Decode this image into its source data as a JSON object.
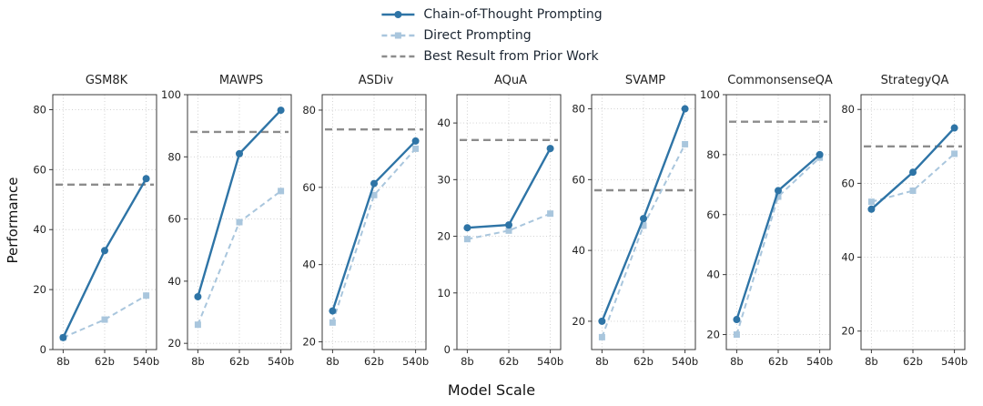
{
  "figure": {
    "ylabel": "Performance",
    "xlabel": "Model Scale"
  },
  "legend": {
    "items": [
      {
        "id": "cot",
        "label": "Chain-of-Thought Prompting",
        "style": "solid",
        "marker": "circle",
        "color": "#2e74a6"
      },
      {
        "id": "direct",
        "label": "Direct Prompting",
        "style": "dashed",
        "marker": "square",
        "color": "#a9c6dd"
      },
      {
        "id": "prior",
        "label": "Best Result from Prior Work",
        "style": "dashed",
        "marker": "none",
        "color": "#8c8c8c"
      }
    ]
  },
  "chart_data": {
    "type": "line",
    "x_categories": [
      "8b",
      "62b",
      "540b"
    ],
    "xlabel": "Model Scale",
    "ylabel": "Performance",
    "grid": true,
    "legend_position": "top-center",
    "series_names": [
      "Chain-of-Thought Prompting",
      "Direct Prompting"
    ],
    "reference_line_name": "Best Result from Prior Work",
    "panels": [
      {
        "title": "GSM8K",
        "ylim": [
          0,
          85
        ],
        "yticks": [
          0,
          20,
          40,
          60,
          80
        ],
        "cot": [
          4,
          33,
          57
        ],
        "direct": [
          4,
          10,
          18
        ],
        "prior_best": 55
      },
      {
        "title": "MAWPS",
        "ylim": [
          18,
          100
        ],
        "yticks": [
          20,
          40,
          60,
          80,
          100
        ],
        "cot": [
          35,
          81,
          95
        ],
        "direct": [
          26,
          59,
          69
        ],
        "prior_best": 88
      },
      {
        "title": "ASDiv",
        "ylim": [
          18,
          84
        ],
        "yticks": [
          20,
          40,
          60,
          80
        ],
        "cot": [
          28,
          61,
          72
        ],
        "direct": [
          25,
          58,
          70
        ],
        "prior_best": 75
      },
      {
        "title": "AQuA",
        "ylim": [
          0,
          45
        ],
        "yticks": [
          0,
          10,
          20,
          30,
          40
        ],
        "cot": [
          21.5,
          22,
          35.5
        ],
        "direct": [
          19.5,
          21,
          24
        ],
        "prior_best": 37
      },
      {
        "title": "SVAMP",
        "ylim": [
          12,
          84
        ],
        "yticks": [
          20,
          40,
          60,
          80
        ],
        "cot": [
          20,
          49,
          80
        ],
        "direct": [
          15.5,
          47,
          70
        ],
        "prior_best": 57
      },
      {
        "title": "CommonsenseQA",
        "ylim": [
          15,
          100
        ],
        "yticks": [
          20,
          40,
          60,
          80,
          100
        ],
        "cot": [
          25,
          68,
          80
        ],
        "direct": [
          20,
          66,
          79
        ],
        "prior_best": 91
      },
      {
        "title": "StrategyQA",
        "ylim": [
          15,
          84
        ],
        "yticks": [
          20,
          40,
          60,
          80
        ],
        "cot": [
          53,
          63,
          75
        ],
        "direct": [
          55,
          58,
          68
        ],
        "prior_best": 70
      }
    ]
  }
}
